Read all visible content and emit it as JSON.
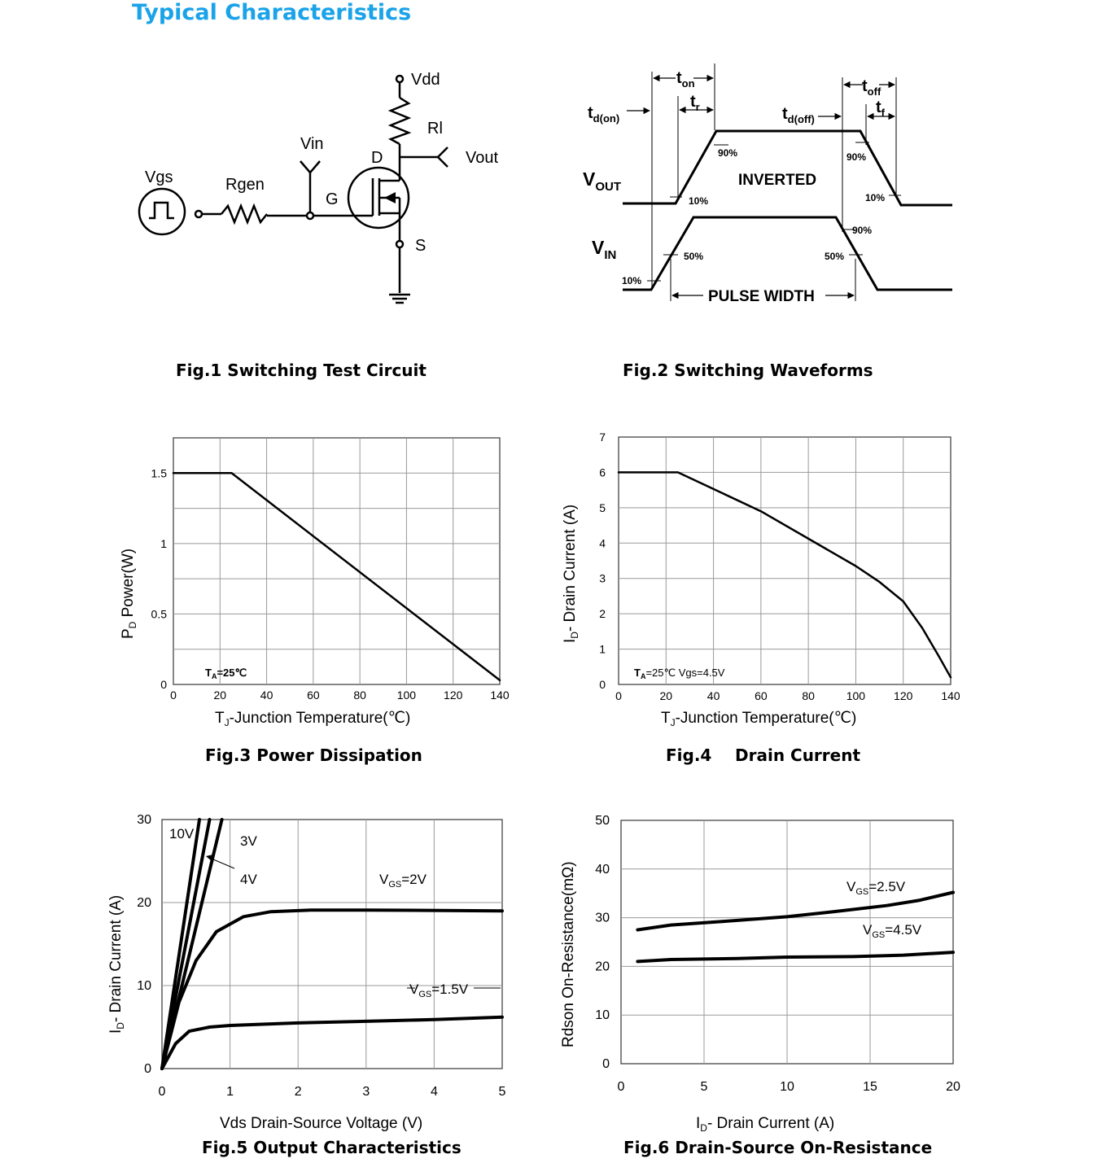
{
  "page": {
    "section_title": "Typical Characteristics"
  },
  "fig1": {
    "caption": "Fig.1 Switching Test Circuit",
    "labels": {
      "vdd": "Vdd",
      "rl": "Rl",
      "vin": "Vin",
      "vout": "Vout",
      "vgs": "Vgs",
      "rgen": "Rgen",
      "d": "D",
      "g": "G",
      "s": "S"
    }
  },
  "fig2": {
    "caption": "Fig.2 Switching Waveforms",
    "labels": {
      "td_on": "t",
      "td_on_sub": "d(on)",
      "t_on": "t",
      "t_on_sub": "on",
      "t_r": "t",
      "t_r_sub": "r",
      "td_off": "t",
      "td_off_sub": "d(off)",
      "t_off": "t",
      "t_off_sub": "off",
      "t_f": "t",
      "t_f_sub": "f",
      "vout": "V",
      "vout_sub": "OUT",
      "vin": "V",
      "vin_sub": "IN",
      "inverted": "INVERTED",
      "pulse_width": "PULSE WIDTH",
      "p90a": "90%",
      "p90b": "90%",
      "p90c": "90%",
      "p10a": "10%",
      "p10b": "10%",
      "p10c": "10%",
      "p50a": "50%",
      "p50b": "50%"
    }
  },
  "chart_data": [
    {
      "id": "fig3",
      "type": "line",
      "caption": "Fig.3 Power Dissipation",
      "xlabel": "T",
      "xlabel_sub": "J",
      "xlabel_rest": "-Junction Temperature(℃)",
      "ylabel_a": "P",
      "ylabel_sub": "D",
      "ylabel_b": "  Power(W)",
      "annotation": "T",
      "annotation_sub": "A",
      "annotation_rest": "=25℃",
      "x_ticks": [
        "0",
        "20",
        "40",
        "60",
        "80",
        "100",
        "120",
        "140"
      ],
      "y_ticks": [
        "0",
        "0.5",
        "1",
        "1.5"
      ],
      "xlim": [
        0,
        140
      ],
      "ylim": [
        0,
        1.75
      ],
      "grid": true,
      "series": [
        {
          "x": [
            0,
            25,
            140
          ],
          "y": [
            1.5,
            1.5,
            0.03
          ]
        }
      ]
    },
    {
      "id": "fig4",
      "type": "line",
      "caption_a": "Fig.4",
      "caption_b": "Drain Current",
      "xlabel": "T",
      "xlabel_sub": "J",
      "xlabel_rest": "-Junction Temperature(℃)",
      "ylabel_a": "I",
      "ylabel_sub": "D",
      "ylabel_b": "- Drain Current (A)",
      "annotation": "T",
      "annotation_sub": "A",
      "annotation_rest": "=25℃  Vgs=4.5V",
      "x_ticks": [
        "0",
        "20",
        "40",
        "60",
        "80",
        "100",
        "120",
        "140"
      ],
      "y_ticks": [
        "0",
        "1",
        "2",
        "3",
        "4",
        "5",
        "6",
        "7"
      ],
      "xlim": [
        0,
        140
      ],
      "ylim": [
        0,
        7
      ],
      "grid": true,
      "series": [
        {
          "x": [
            0,
            25,
            60,
            100,
            110,
            120,
            128,
            135,
            140
          ],
          "y": [
            6,
            6,
            4.9,
            3.35,
            2.9,
            2.35,
            1.6,
            0.8,
            0.2
          ]
        }
      ]
    },
    {
      "id": "fig5",
      "type": "line",
      "caption": "Fig.5 Output Characteristics",
      "xlabel": "Vds Drain-Source Voltage (V)",
      "ylabel_a": "I",
      "ylabel_sub": "D",
      "ylabel_b": "- Drain Current (A)",
      "x_ticks": [
        "0",
        "1",
        "2",
        "3",
        "4",
        "5"
      ],
      "y_ticks": [
        "0",
        "10",
        "20",
        "30"
      ],
      "xlim": [
        0,
        5
      ],
      "ylim": [
        0,
        30
      ],
      "grid": true,
      "series_labels": {
        "v10": "10V",
        "v3": "3V",
        "v4": "4V",
        "v2": "V",
        "v2_sub": "GS",
        "v2_rest": "=2V",
        "v15": "V",
        "v15_sub": "GS",
        "v15_rest": "=1.5V"
      },
      "series": [
        {
          "x": [
            0,
            0.55
          ],
          "y": [
            0,
            30
          ]
        },
        {
          "x": [
            0,
            0.7
          ],
          "y": [
            0,
            30
          ]
        },
        {
          "x": [
            0,
            0.88
          ],
          "y": [
            0,
            30
          ]
        },
        {
          "x": [
            0,
            0.25,
            0.5,
            0.8,
            1.2,
            1.6,
            2.2,
            3,
            5
          ],
          "y": [
            0,
            8,
            13,
            16.5,
            18.3,
            18.9,
            19.1,
            19.1,
            19.0
          ]
        },
        {
          "x": [
            0,
            0.2,
            0.4,
            0.7,
            1,
            2,
            3,
            4,
            5
          ],
          "y": [
            0,
            3,
            4.5,
            5,
            5.2,
            5.5,
            5.7,
            5.9,
            6.2
          ]
        }
      ]
    },
    {
      "id": "fig6",
      "type": "line",
      "caption": "Fig.6 Drain-Source On-Resistance",
      "xlabel": "I",
      "xlabel_sub": "D",
      "xlabel_rest": "- Drain Current (A)",
      "ylabel": "Rdson On-Resistance(mΩ)",
      "x_ticks": [
        "0",
        "5",
        "10",
        "15",
        "20"
      ],
      "y_ticks": [
        "0",
        "10",
        "20",
        "30",
        "40",
        "50"
      ],
      "xlim": [
        0,
        20
      ],
      "ylim": [
        0,
        50
      ],
      "grid": true,
      "series_labels": {
        "a": "V",
        "a_sub": "GS",
        "a_rest": "=2.5V",
        "b": "V",
        "b_sub": "GS",
        "b_rest": "=4.5V"
      },
      "series": [
        {
          "x": [
            1,
            3,
            6,
            10,
            13,
            16,
            18,
            20
          ],
          "y": [
            27.5,
            28.5,
            29.2,
            30.2,
            31.3,
            32.5,
            33.6,
            35.2
          ]
        },
        {
          "x": [
            1,
            3,
            7,
            10,
            14,
            17,
            20
          ],
          "y": [
            21,
            21.4,
            21.6,
            21.9,
            22,
            22.3,
            22.9
          ]
        }
      ]
    }
  ]
}
